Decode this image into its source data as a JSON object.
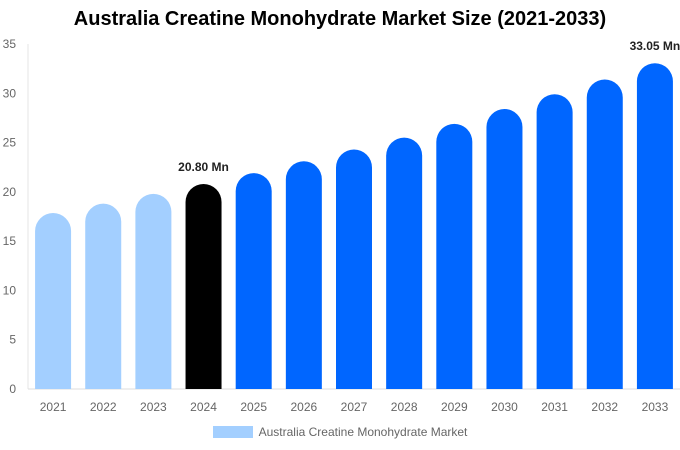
{
  "chart_data": {
    "type": "bar",
    "title": "Australia Creatine Monohydrate Market Size (2021-2033)",
    "categories": [
      "2021",
      "2022",
      "2023",
      "2024",
      "2025",
      "2026",
      "2027",
      "2028",
      "2029",
      "2030",
      "2031",
      "2032",
      "2033"
    ],
    "series": [
      {
        "name": "Australia Creatine Monohydrate Market",
        "values": [
          17.85,
          18.8,
          19.8,
          20.8,
          21.9,
          23.1,
          24.3,
          25.5,
          26.9,
          28.4,
          29.9,
          31.4,
          33.05
        ]
      }
    ],
    "data_labels": {
      "3": "20.80 Mn",
      "12": "33.05 Mn"
    },
    "ylim": [
      0,
      35
    ],
    "yticks": [
      0,
      5,
      10,
      15,
      20,
      25,
      30,
      35
    ],
    "colors": {
      "historical": "#a3cfff",
      "base_year": "#000000",
      "forecast": "#0066ff"
    },
    "legend_position": "bottom",
    "grid": false
  }
}
